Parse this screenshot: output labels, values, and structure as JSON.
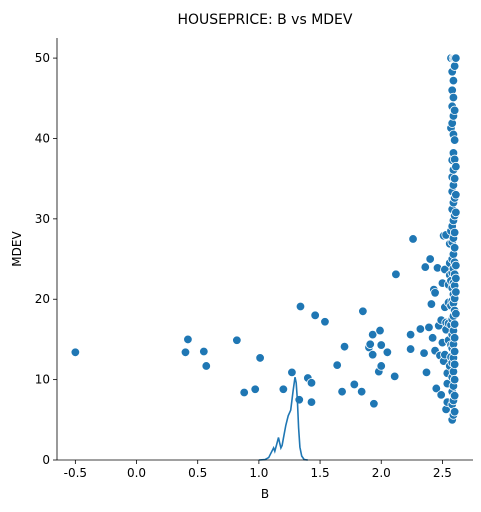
{
  "chart_data": {
    "type": "scatter",
    "title": "HOUSEPRICE: B vs MDEV",
    "xlabel": "B",
    "ylabel": "MDEV",
    "xlim": [
      -0.65,
      2.75
    ],
    "ylim": [
      0,
      52.5
    ],
    "x_ticks": [
      -0.5,
      0.0,
      0.5,
      1.0,
      1.5,
      2.0,
      2.5
    ],
    "x_tick_labels": [
      "-0.5",
      "0.0",
      "0.5",
      "1.0",
      "1.5",
      "2.0",
      "2.5"
    ],
    "y_ticks": [
      0,
      10,
      20,
      30,
      40,
      50
    ],
    "y_tick_labels": [
      "0",
      "10",
      "20",
      "30",
      "40",
      "50"
    ],
    "grid": false,
    "colors": {
      "series": "#1f77b4",
      "axis": "#000000",
      "marker_edge": "#ffffff"
    },
    "series": [
      {
        "kind": "scatter",
        "points": [
          [
            -0.5,
            13.4
          ],
          [
            0.4,
            13.4
          ],
          [
            0.42,
            15.0
          ],
          [
            0.55,
            13.5
          ],
          [
            0.57,
            11.7
          ],
          [
            0.82,
            14.9
          ],
          [
            0.88,
            8.4
          ],
          [
            0.97,
            8.8
          ],
          [
            1.01,
            12.7
          ],
          [
            1.2,
            8.8
          ],
          [
            1.27,
            10.9
          ],
          [
            1.33,
            7.5
          ],
          [
            1.34,
            19.1
          ],
          [
            1.4,
            10.2
          ],
          [
            1.43,
            9.6
          ],
          [
            1.43,
            7.2
          ],
          [
            1.46,
            18.0
          ],
          [
            1.54,
            17.2
          ],
          [
            1.64,
            11.8
          ],
          [
            1.68,
            8.5
          ],
          [
            1.7,
            14.1
          ],
          [
            1.78,
            9.4
          ],
          [
            1.84,
            8.5
          ],
          [
            1.85,
            18.5
          ],
          [
            1.9,
            14.0
          ],
          [
            1.91,
            14.4
          ],
          [
            1.93,
            15.6
          ],
          [
            1.93,
            13.1
          ],
          [
            1.94,
            7.0
          ],
          [
            1.98,
            11.0
          ],
          [
            1.99,
            16.1
          ],
          [
            2.0,
            14.3
          ],
          [
            2.0,
            11.7
          ],
          [
            2.05,
            13.4
          ],
          [
            2.11,
            10.4
          ],
          [
            2.12,
            23.1
          ],
          [
            2.24,
            13.8
          ],
          [
            2.24,
            15.6
          ],
          [
            2.26,
            27.5
          ],
          [
            2.32,
            16.3
          ],
          [
            2.35,
            13.3
          ],
          [
            2.36,
            24.0
          ],
          [
            2.37,
            10.9
          ],
          [
            2.39,
            16.5
          ],
          [
            2.4,
            25.0
          ],
          [
            2.41,
            19.4
          ],
          [
            2.42,
            15.2
          ],
          [
            2.43,
            21.2
          ],
          [
            2.44,
            20.8
          ],
          [
            2.44,
            13.6
          ],
          [
            2.45,
            8.9
          ],
          [
            2.46,
            23.9
          ],
          [
            2.47,
            16.7
          ],
          [
            2.48,
            13.0
          ],
          [
            2.49,
            8.1
          ],
          [
            2.49,
            17.4
          ],
          [
            2.5,
            14.6
          ],
          [
            2.5,
            22.0
          ],
          [
            2.51,
            12.3
          ],
          [
            2.51,
            27.9
          ],
          [
            2.52,
            13.1
          ],
          [
            2.52,
            19.0
          ],
          [
            2.52,
            23.7
          ],
          [
            2.53,
            6.3
          ],
          [
            2.53,
            17.1
          ],
          [
            2.53,
            16.2
          ],
          [
            2.53,
            28.0
          ],
          [
            2.54,
            9.5
          ],
          [
            2.54,
            7.2
          ],
          [
            2.54,
            10.8
          ],
          [
            2.55,
            14.9
          ],
          [
            2.55,
            17.0
          ],
          [
            2.55,
            19.6
          ],
          [
            2.55,
            21.8
          ],
          [
            2.56,
            11.7
          ],
          [
            2.56,
            24.5
          ],
          [
            2.56,
            23.0
          ],
          [
            2.56,
            26.9
          ],
          [
            2.57,
            12.8
          ],
          [
            2.57,
            14.3
          ],
          [
            2.57,
            16.8
          ],
          [
            2.57,
            19.2
          ],
          [
            2.57,
            22.3
          ],
          [
            2.57,
            28.5
          ],
          [
            2.57,
            41.3
          ],
          [
            2.57,
            50.0
          ],
          [
            2.58,
            5.0
          ],
          [
            2.58,
            6.9
          ],
          [
            2.58,
            8.5
          ],
          [
            2.58,
            10.3
          ],
          [
            2.58,
            12.1
          ],
          [
            2.58,
            13.9
          ],
          [
            2.58,
            15.6
          ],
          [
            2.58,
            17.5
          ],
          [
            2.58,
            19.8
          ],
          [
            2.58,
            21.4
          ],
          [
            2.58,
            23.3
          ],
          [
            2.58,
            25.0
          ],
          [
            2.58,
            27.1
          ],
          [
            2.58,
            29.1
          ],
          [
            2.58,
            31.2
          ],
          [
            2.58,
            33.4
          ],
          [
            2.58,
            35.2
          ],
          [
            2.58,
            37.3
          ],
          [
            2.58,
            41.9
          ],
          [
            2.58,
            44.0
          ],
          [
            2.58,
            46.0
          ],
          [
            2.58,
            48.3
          ],
          [
            2.59,
            5.6
          ],
          [
            2.59,
            7.4
          ],
          [
            2.59,
            9.2
          ],
          [
            2.59,
            11.0
          ],
          [
            2.59,
            12.7
          ],
          [
            2.59,
            14.4
          ],
          [
            2.59,
            16.1
          ],
          [
            2.59,
            17.9
          ],
          [
            2.59,
            19.5
          ],
          [
            2.59,
            20.6
          ],
          [
            2.59,
            22.0
          ],
          [
            2.59,
            23.8
          ],
          [
            2.59,
            25.6
          ],
          [
            2.59,
            27.6
          ],
          [
            2.59,
            29.8
          ],
          [
            2.59,
            32.0
          ],
          [
            2.59,
            34.2
          ],
          [
            2.59,
            36.1
          ],
          [
            2.59,
            38.2
          ],
          [
            2.59,
            40.5
          ],
          [
            2.59,
            42.8
          ],
          [
            2.59,
            45.1
          ],
          [
            2.59,
            47.2
          ],
          [
            2.59,
            50.0
          ],
          [
            2.6,
            6.0
          ],
          [
            2.6,
            8.0
          ],
          [
            2.6,
            10.0
          ],
          [
            2.6,
            11.9
          ],
          [
            2.6,
            13.5
          ],
          [
            2.6,
            15.2
          ],
          [
            2.6,
            16.9
          ],
          [
            2.6,
            18.6
          ],
          [
            2.6,
            20.1
          ],
          [
            2.6,
            21.7
          ],
          [
            2.6,
            23.1
          ],
          [
            2.6,
            24.6
          ],
          [
            2.6,
            26.4
          ],
          [
            2.6,
            28.3
          ],
          [
            2.6,
            30.4
          ],
          [
            2.6,
            32.6
          ],
          [
            2.6,
            35.0
          ],
          [
            2.6,
            37.4
          ],
          [
            2.6,
            39.8
          ],
          [
            2.6,
            43.5
          ],
          [
            2.6,
            49.0
          ],
          [
            2.6,
            50.0
          ],
          [
            2.61,
            18.2
          ],
          [
            2.61,
            20.9
          ],
          [
            2.61,
            22.6
          ],
          [
            2.61,
            24.2
          ],
          [
            2.61,
            30.8
          ],
          [
            2.61,
            33.0
          ],
          [
            2.61,
            36.5
          ],
          [
            2.61,
            50.0
          ]
        ]
      },
      {
        "kind": "kde_line",
        "points": [
          [
            1.0,
            0.0
          ],
          [
            1.05,
            0.05
          ],
          [
            1.08,
            0.3
          ],
          [
            1.1,
            0.9
          ],
          [
            1.12,
            1.5
          ],
          [
            1.13,
            1.1
          ],
          [
            1.145,
            1.9
          ],
          [
            1.16,
            2.8
          ],
          [
            1.17,
            2.1
          ],
          [
            1.18,
            1.5
          ],
          [
            1.19,
            1.8
          ],
          [
            1.2,
            2.7
          ],
          [
            1.22,
            4.3
          ],
          [
            1.24,
            5.5
          ],
          [
            1.26,
            6.2
          ],
          [
            1.28,
            8.6
          ],
          [
            1.295,
            10.3
          ],
          [
            1.305,
            9.6
          ],
          [
            1.315,
            7.4
          ],
          [
            1.325,
            4.0
          ],
          [
            1.335,
            1.6
          ],
          [
            1.35,
            0.5
          ],
          [
            1.37,
            0.05
          ],
          [
            1.4,
            0.0
          ]
        ]
      }
    ]
  }
}
